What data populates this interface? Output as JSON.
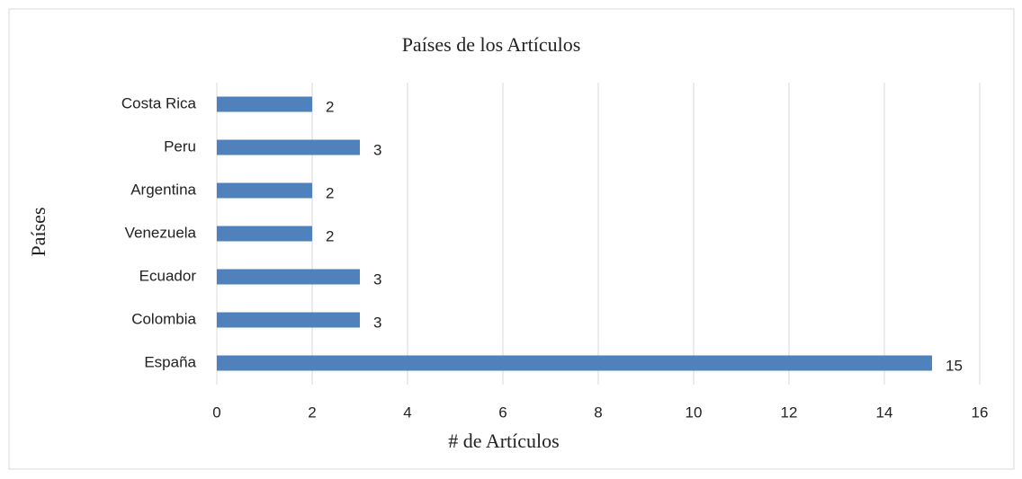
{
  "chart_data": {
    "type": "bar",
    "orientation": "horizontal",
    "title": "Países de los Artículos",
    "x_label": "# de Artículos",
    "y_label": "Países",
    "categories": [
      "España",
      "Colombia",
      "Ecuador",
      "Venezuela",
      "Argentina",
      "Peru",
      "Costa Rica"
    ],
    "values": [
      15,
      3,
      3,
      2,
      2,
      3,
      2
    ],
    "color": "#4f81bd",
    "xlim": [
      0,
      16
    ],
    "xticks": [
      0,
      2,
      4,
      6,
      8,
      10,
      12,
      14,
      16
    ],
    "grid": true
  }
}
